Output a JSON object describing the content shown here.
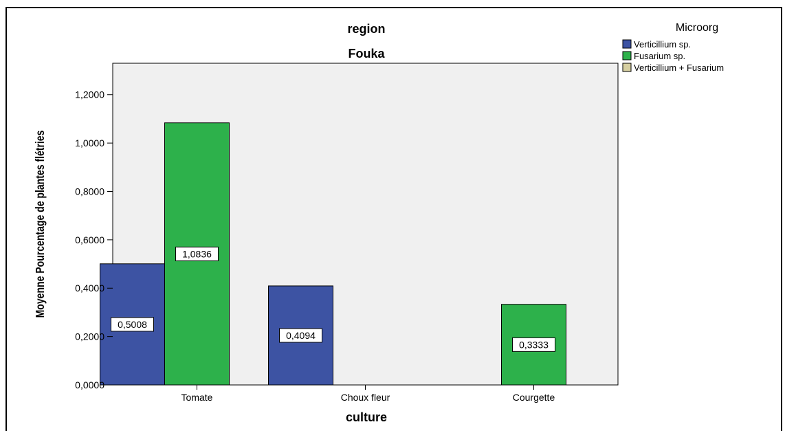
{
  "chart_data": {
    "type": "bar",
    "title": "region",
    "subtitle": "Fouka",
    "xlabel": "culture",
    "ylabel": "Moyenne Pourcentage de plantes flétries",
    "categories": [
      "Tomate",
      "Choux fleur",
      "Courgette"
    ],
    "ylim": [
      0,
      1.33
    ],
    "yticks": [
      "0,0000",
      "0,2000",
      "0,4000",
      "0,6000",
      "0,8000",
      "1,0000",
      "1,2000"
    ],
    "ytick_values": [
      0,
      0.2,
      0.4,
      0.6,
      0.8,
      1.0,
      1.2
    ],
    "legend_title": "Microorg",
    "legend_position": "top-right",
    "series": [
      {
        "name": "Verticillium sp.",
        "color": "#3d53a3",
        "values": [
          0.5008,
          0.4094,
          null
        ],
        "labels": [
          "0,5008",
          "0,4094",
          ""
        ]
      },
      {
        "name": "Fusarium sp.",
        "color": "#2db14b",
        "values": [
          1.0836,
          null,
          0.3333
        ],
        "labels": [
          "1,0836",
          "",
          "0,3333"
        ]
      },
      {
        "name": "Verticillium + Fusarium",
        "color": "#d6cfa1",
        "values": [
          null,
          null,
          null
        ],
        "labels": [
          "",
          "",
          ""
        ]
      }
    ],
    "plot_background": "#f0f0f0",
    "grid": false
  }
}
